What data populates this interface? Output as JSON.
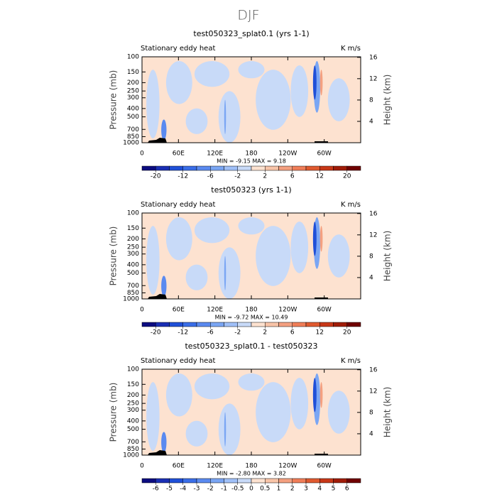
{
  "title": "DJF",
  "chart_data": [
    {
      "type": "contour",
      "title": "test050323_splat0.1 (yrs 1-1)",
      "left_label": "Stationary eddy heat",
      "units": "K m/s",
      "ylabel": "Pressure (mb)",
      "y2label": "Height (km)",
      "log_y": true,
      "ylim": [
        1000,
        100
      ],
      "yticks": [
        100,
        150,
        200,
        250,
        300,
        400,
        500,
        700,
        850,
        1000
      ],
      "y2lim": [
        0,
        16.1
      ],
      "y2ticks": [
        4,
        8,
        12,
        16
      ],
      "xlim": [
        0,
        360
      ],
      "xticks": [
        0,
        {
          "value": 60,
          "label": "60E"
        },
        {
          "value": 120,
          "label": "120E"
        },
        180,
        {
          "value": 240,
          "label": "120W"
        },
        {
          "value": 300,
          "label": "60W"
        }
      ],
      "stats": "MIN =  -9.15   MAX =   9.18",
      "colorbar": {
        "levels": [
          -20,
          -16,
          -12,
          -8,
          -6,
          -4,
          -2,
          0,
          2,
          4,
          6,
          8,
          12,
          16,
          20
        ],
        "ticks": [
          -20,
          -12,
          -6,
          -2,
          2,
          6,
          12,
          20
        ],
        "colors": [
          "#0c0c80",
          "#1a2fb4",
          "#2050d8",
          "#3a6ee8",
          "#5a8af0",
          "#7aa6f4",
          "#a0c0f8",
          "#c8daf8",
          "#fde2d0",
          "#f8c4a8",
          "#f4a080",
          "#f07e58",
          "#e05a30",
          "#c83818",
          "#a01c08",
          "#700000"
        ]
      }
    },
    {
      "type": "contour",
      "title": "test050323 (yrs 1-1)",
      "left_label": "Stationary eddy heat",
      "units": "K m/s",
      "ylabel": "Pressure (mb)",
      "y2label": "Height (km)",
      "log_y": true,
      "ylim": [
        1000,
        100
      ],
      "yticks": [
        100,
        150,
        200,
        250,
        300,
        400,
        500,
        700,
        850,
        1000
      ],
      "y2lim": [
        0,
        16.1
      ],
      "y2ticks": [
        4,
        8,
        12,
        16
      ],
      "xlim": [
        0,
        360
      ],
      "xticks": [
        0,
        {
          "value": 60,
          "label": "60E"
        },
        {
          "value": 120,
          "label": "120E"
        },
        180,
        {
          "value": 240,
          "label": "120W"
        },
        {
          "value": 300,
          "label": "60W"
        }
      ],
      "stats": "MIN =  -9.72   MAX =  10.49",
      "colorbar": {
        "levels": [
          -20,
          -16,
          -12,
          -8,
          -6,
          -4,
          -2,
          0,
          2,
          4,
          6,
          8,
          12,
          16,
          20
        ],
        "ticks": [
          -20,
          -12,
          -6,
          -2,
          2,
          6,
          12,
          20
        ],
        "colors": [
          "#0c0c80",
          "#1a2fb4",
          "#2050d8",
          "#3a6ee8",
          "#5a8af0",
          "#7aa6f4",
          "#a0c0f8",
          "#c8daf8",
          "#fde2d0",
          "#f8c4a8",
          "#f4a080",
          "#f07e58",
          "#e05a30",
          "#c83818",
          "#a01c08",
          "#700000"
        ]
      }
    },
    {
      "type": "contour",
      "title": "test050323_splat0.1 - test050323",
      "left_label": "Stationary eddy heat",
      "units": "K m/s",
      "ylabel": "Pressure (mb)",
      "y2label": "Height (km)",
      "log_y": true,
      "ylim": [
        1000,
        100
      ],
      "yticks": [
        100,
        150,
        200,
        250,
        300,
        400,
        500,
        700,
        850,
        1000
      ],
      "y2lim": [
        0,
        16.1
      ],
      "y2ticks": [
        4,
        8,
        12,
        16
      ],
      "xlim": [
        0,
        360
      ],
      "xticks": [
        0,
        {
          "value": 60,
          "label": "60E"
        },
        {
          "value": 120,
          "label": "120E"
        },
        180,
        {
          "value": 240,
          "label": "120W"
        },
        {
          "value": 300,
          "label": "60W"
        }
      ],
      "stats": "MIN =  -2.80   MAX =   3.82",
      "colorbar": {
        "levels": [
          -6,
          -5,
          -4,
          -3,
          -2,
          -1,
          -0.5,
          0,
          0.5,
          1,
          2,
          3,
          4,
          5,
          6
        ],
        "ticks": [
          -6,
          -5,
          -4,
          -3,
          -2,
          -1,
          -0.5,
          0,
          0.5,
          1,
          2,
          3,
          4,
          5,
          6
        ],
        "colors": [
          "#0c0c80",
          "#1a2fb4",
          "#2050d8",
          "#3a6ee8",
          "#5a8af0",
          "#7aa6f4",
          "#a0c0f8",
          "#c8daf8",
          "#fde2d0",
          "#f8c4a8",
          "#f4a080",
          "#f07e58",
          "#e05a30",
          "#c83818",
          "#a01c08",
          "#700000"
        ]
      }
    }
  ]
}
